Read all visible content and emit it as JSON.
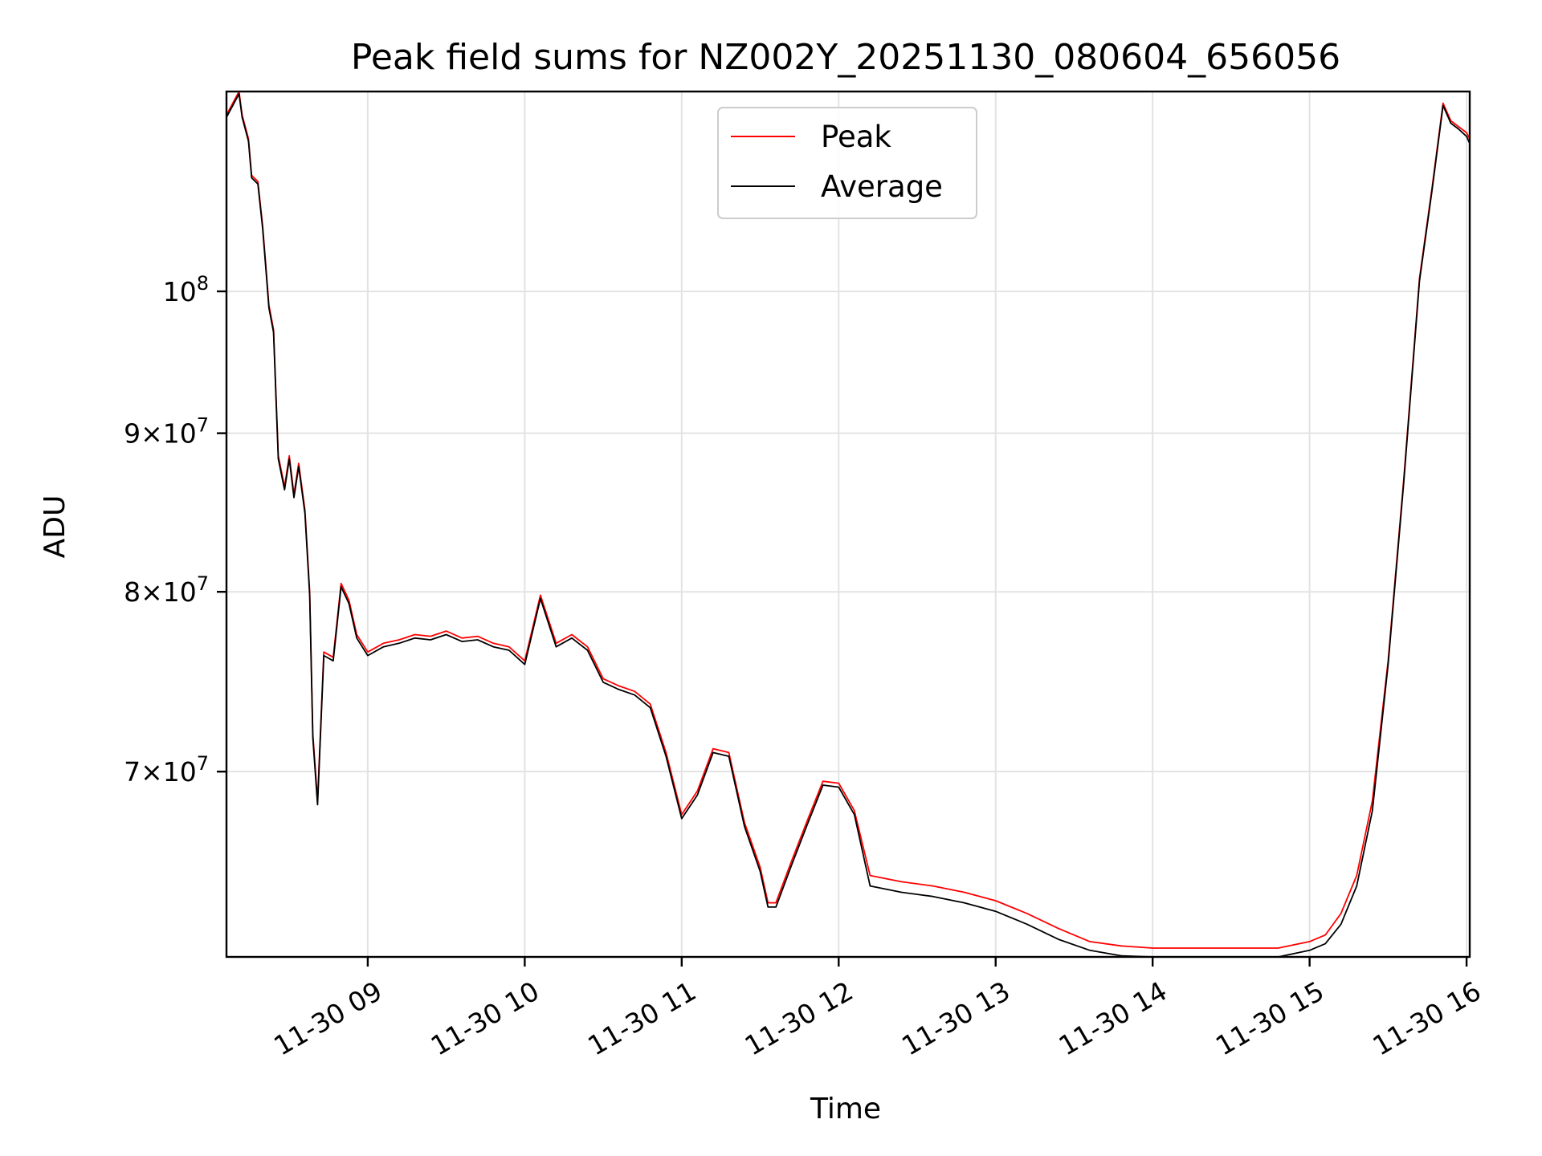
{
  "chart_data": {
    "type": "line",
    "title": "Peak field sums for NZ002Y_20251130_080604_656056",
    "xlabel": "Time",
    "ylabel": "ADU",
    "yscale": "log",
    "grid": true,
    "legend_position": "top-center",
    "xlim": [
      8.1,
      16.02
    ],
    "ylim": [
      61000000,
      116000000
    ],
    "x_unit": "hours",
    "x_ticks": [
      {
        "value": 9,
        "label": "11-30 09"
      },
      {
        "value": 10,
        "label": "11-30 10"
      },
      {
        "value": 11,
        "label": "11-30 11"
      },
      {
        "value": 12,
        "label": "11-30 12"
      },
      {
        "value": 13,
        "label": "11-30 13"
      },
      {
        "value": 14,
        "label": "11-30 14"
      },
      {
        "value": 15,
        "label": "11-30 15"
      },
      {
        "value": 16,
        "label": "11-30 16"
      }
    ],
    "y_ticks": [
      {
        "value": 70000000,
        "mantissa": "7",
        "base": "10",
        "exp": "7",
        "times": "×"
      },
      {
        "value": 80000000,
        "mantissa": "8",
        "base": "10",
        "exp": "7",
        "times": "×"
      },
      {
        "value": 90000000,
        "mantissa": "9",
        "base": "10",
        "exp": "7",
        "times": "×"
      },
      {
        "value": 100000000,
        "mantissa": "",
        "base": "10",
        "exp": "8",
        "times": ""
      }
    ],
    "series": [
      {
        "name": "Peak",
        "color": "#ff0000",
        "points": [
          [
            8.1,
            114000000
          ],
          [
            8.18,
            116000000
          ],
          [
            8.2,
            114000000
          ],
          [
            8.24,
            112000000
          ],
          [
            8.26,
            109000000
          ],
          [
            8.3,
            108500000
          ],
          [
            8.33,
            105000000
          ],
          [
            8.35,
            102000000
          ],
          [
            8.37,
            99000000
          ],
          [
            8.4,
            97200000
          ],
          [
            8.43,
            88500000
          ],
          [
            8.47,
            86500000
          ],
          [
            8.5,
            88500000
          ],
          [
            8.53,
            86000000
          ],
          [
            8.56,
            88000000
          ],
          [
            8.6,
            85000000
          ],
          [
            8.63,
            80000000
          ],
          [
            8.65,
            72000000
          ],
          [
            8.68,
            68500000
          ],
          [
            8.72,
            76500000
          ],
          [
            8.78,
            76200000
          ],
          [
            8.83,
            80500000
          ],
          [
            8.88,
            79500000
          ],
          [
            8.93,
            77500000
          ],
          [
            9.0,
            76500000
          ],
          [
            9.1,
            77000000
          ],
          [
            9.2,
            77200000
          ],
          [
            9.3,
            77500000
          ],
          [
            9.4,
            77400000
          ],
          [
            9.5,
            77700000
          ],
          [
            9.6,
            77300000
          ],
          [
            9.7,
            77400000
          ],
          [
            9.8,
            77000000
          ],
          [
            9.9,
            76800000
          ],
          [
            10.0,
            76000000
          ],
          [
            10.1,
            79800000
          ],
          [
            10.2,
            77000000
          ],
          [
            10.3,
            77500000
          ],
          [
            10.4,
            76800000
          ],
          [
            10.5,
            75000000
          ],
          [
            10.6,
            74600000
          ],
          [
            10.7,
            74300000
          ],
          [
            10.8,
            73600000
          ],
          [
            10.9,
            71000000
          ],
          [
            11.0,
            67800000
          ],
          [
            11.1,
            69000000
          ],
          [
            11.2,
            71200000
          ],
          [
            11.3,
            71000000
          ],
          [
            11.4,
            67400000
          ],
          [
            11.5,
            65200000
          ],
          [
            11.55,
            63500000
          ],
          [
            11.6,
            63500000
          ],
          [
            11.7,
            65500000
          ],
          [
            11.8,
            67500000
          ],
          [
            11.9,
            69500000
          ],
          [
            12.0,
            69400000
          ],
          [
            12.1,
            68000000
          ],
          [
            12.2,
            64800000
          ],
          [
            12.4,
            64500000
          ],
          [
            12.6,
            64300000
          ],
          [
            12.8,
            64000000
          ],
          [
            13.0,
            63600000
          ],
          [
            13.2,
            63000000
          ],
          [
            13.4,
            62300000
          ],
          [
            13.6,
            61700000
          ],
          [
            13.8,
            61500000
          ],
          [
            14.0,
            61400000
          ],
          [
            14.2,
            61400000
          ],
          [
            14.4,
            61400000
          ],
          [
            14.6,
            61400000
          ],
          [
            14.8,
            61400000
          ],
          [
            15.0,
            61700000
          ],
          [
            15.1,
            62000000
          ],
          [
            15.2,
            63000000
          ],
          [
            15.3,
            64800000
          ],
          [
            15.4,
            68500000
          ],
          [
            15.5,
            76000000
          ],
          [
            15.6,
            87000000
          ],
          [
            15.7,
            101000000
          ],
          [
            15.78,
            108000000
          ],
          [
            15.85,
            115000000
          ],
          [
            15.9,
            113500000
          ],
          [
            15.95,
            113000000
          ],
          [
            16.0,
            112500000
          ],
          [
            16.02,
            112000000
          ]
        ]
      },
      {
        "name": "Average",
        "color": "#000000",
        "points": [
          [
            8.1,
            113800000
          ],
          [
            8.18,
            115800000
          ],
          [
            8.2,
            113800000
          ],
          [
            8.24,
            111800000
          ],
          [
            8.26,
            108800000
          ],
          [
            8.3,
            108300000
          ],
          [
            8.33,
            104800000
          ],
          [
            8.35,
            101800000
          ],
          [
            8.37,
            98800000
          ],
          [
            8.4,
            97000000
          ],
          [
            8.43,
            88300000
          ],
          [
            8.47,
            86300000
          ],
          [
            8.5,
            88300000
          ],
          [
            8.53,
            85800000
          ],
          [
            8.56,
            87800000
          ],
          [
            8.6,
            84800000
          ],
          [
            8.63,
            79800000
          ],
          [
            8.65,
            71800000
          ],
          [
            8.68,
            68300000
          ],
          [
            8.72,
            76300000
          ],
          [
            8.78,
            76000000
          ],
          [
            8.83,
            80300000
          ],
          [
            8.88,
            79300000
          ],
          [
            8.93,
            77300000
          ],
          [
            9.0,
            76300000
          ],
          [
            9.1,
            76800000
          ],
          [
            9.2,
            77000000
          ],
          [
            9.3,
            77300000
          ],
          [
            9.4,
            77200000
          ],
          [
            9.5,
            77500000
          ],
          [
            9.6,
            77100000
          ],
          [
            9.7,
            77200000
          ],
          [
            9.8,
            76800000
          ],
          [
            9.9,
            76600000
          ],
          [
            10.0,
            75800000
          ],
          [
            10.1,
            79600000
          ],
          [
            10.2,
            76800000
          ],
          [
            10.3,
            77300000
          ],
          [
            10.4,
            76600000
          ],
          [
            10.5,
            74800000
          ],
          [
            10.6,
            74400000
          ],
          [
            10.7,
            74100000
          ],
          [
            10.8,
            73400000
          ],
          [
            10.9,
            70800000
          ],
          [
            11.0,
            67600000
          ],
          [
            11.1,
            68800000
          ],
          [
            11.2,
            71000000
          ],
          [
            11.3,
            70800000
          ],
          [
            11.4,
            67200000
          ],
          [
            11.5,
            65000000
          ],
          [
            11.55,
            63300000
          ],
          [
            11.6,
            63300000
          ],
          [
            11.7,
            65300000
          ],
          [
            11.8,
            67300000
          ],
          [
            11.9,
            69300000
          ],
          [
            12.0,
            69200000
          ],
          [
            12.1,
            67800000
          ],
          [
            12.2,
            64300000
          ],
          [
            12.4,
            64000000
          ],
          [
            12.6,
            63800000
          ],
          [
            12.8,
            63500000
          ],
          [
            13.0,
            63100000
          ],
          [
            13.2,
            62500000
          ],
          [
            13.4,
            61800000
          ],
          [
            13.6,
            61300000
          ],
          [
            13.8,
            61050000
          ],
          [
            14.0,
            61000000
          ],
          [
            14.2,
            61000000
          ],
          [
            14.4,
            61000000
          ],
          [
            14.6,
            61000000
          ],
          [
            14.8,
            61000000
          ],
          [
            15.0,
            61300000
          ],
          [
            15.1,
            61600000
          ],
          [
            15.2,
            62500000
          ],
          [
            15.3,
            64300000
          ],
          [
            15.4,
            68000000
          ],
          [
            15.5,
            75800000
          ],
          [
            15.6,
            86800000
          ],
          [
            15.7,
            100800000
          ],
          [
            15.78,
            107800000
          ],
          [
            15.85,
            114800000
          ],
          [
            15.9,
            113300000
          ],
          [
            15.95,
            112800000
          ],
          [
            16.0,
            112200000
          ],
          [
            16.02,
            111600000
          ]
        ]
      }
    ]
  }
}
